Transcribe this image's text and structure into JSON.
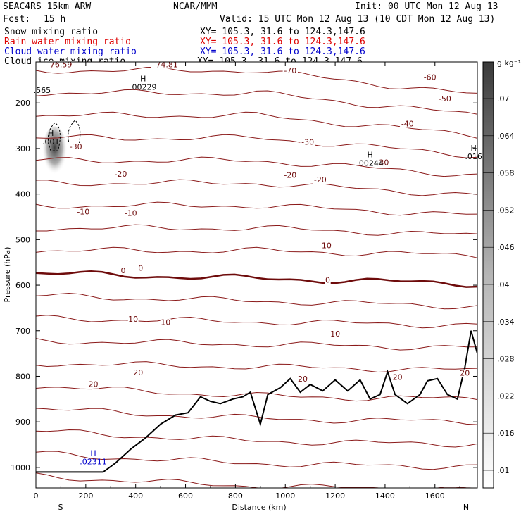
{
  "header": {
    "model": "SEAC4RS 15km ARW",
    "center": "NCAR/MMM",
    "init": "Init: 00 UTC Mon 12 Aug 13",
    "fcst_label": "Fcst:",
    "fcst_value": "15 h",
    "valid": "Valid: 15 UTC Mon 12 Aug 13 (10 CDT Mon 12 Aug 13)",
    "fields": [
      {
        "name": "Snow mixing ratio",
        "xy": "XY= 105.3, 31.6 to 124.3,147.6",
        "color": "#000000"
      },
      {
        "name": "Rain water mixing ratio",
        "xy": "XY= 105.3, 31.6 to 124.3,147.6",
        "color": "#dd0000"
      },
      {
        "name": "Cloud water mixing ratio",
        "xy": "XY= 105.3, 31.6 to 124.3,147.6",
        "color": "#0000cc"
      },
      {
        "name": "Cloud ice mixing ratio",
        "xy": "XY= 105.3, 31.6 to 124.3,147.6",
        "color": "#000000"
      }
    ]
  },
  "chart_data": {
    "type": "cross-section",
    "xlabel": "Distance (km)",
    "ylabel": "Pressure (hPa)",
    "x_ticks": [
      0,
      200,
      400,
      600,
      800,
      1000,
      1200,
      1400,
      1600
    ],
    "y_ticks": [
      200,
      300,
      400,
      500,
      600,
      700,
      800,
      900,
      1000
    ],
    "xlim": [
      0,
      1770
    ],
    "ylim": [
      1045,
      110
    ],
    "end_labels": {
      "left": "S",
      "right": "N"
    },
    "colorbar": {
      "unit": "g kg⁻¹",
      "ticks": [
        ".01",
        ".016",
        ".022",
        ".028",
        ".034",
        ".04",
        ".046",
        ".052",
        ".058",
        ".064",
        ".07"
      ],
      "min_color": "#ffffff",
      "max_color": "#3a3a3a"
    },
    "temperature_contours": {
      "color": "#8b1a1a",
      "levels": [
        -70,
        -60,
        -50,
        -40,
        -30,
        -20,
        -10,
        0,
        10,
        20
      ]
    },
    "contour_labels": [
      {
        "text": "-76.59",
        "x": 95,
        "p": 120
      },
      {
        "text": "-74.81",
        "x": 520,
        "p": 120
      },
      {
        "text": "-70",
        "x": 1020,
        "p": 133
      },
      {
        "text": "-60",
        "x": 1580,
        "p": 148
      },
      {
        "text": "-50",
        "x": 1640,
        "p": 195
      },
      {
        "text": "-40",
        "x": 1490,
        "p": 250
      },
      {
        "text": "-30",
        "x": 160,
        "p": 300
      },
      {
        "text": "-30",
        "x": 1090,
        "p": 290
      },
      {
        "text": "-30",
        "x": 1390,
        "p": 335
      },
      {
        "text": "-20",
        "x": 340,
        "p": 360
      },
      {
        "text": "-20",
        "x": 1020,
        "p": 363
      },
      {
        "text": "-20",
        "x": 1140,
        "p": 373
      },
      {
        "text": "-10",
        "x": 190,
        "p": 443
      },
      {
        "text": "-10",
        "x": 380,
        "p": 446
      },
      {
        "text": "-10",
        "x": 1160,
        "p": 517
      },
      {
        "text": "0",
        "x": 350,
        "p": 572
      },
      {
        "text": "0",
        "x": 420,
        "p": 567
      },
      {
        "text": "0",
        "x": 1170,
        "p": 593
      },
      {
        "text": "10",
        "x": 390,
        "p": 679
      },
      {
        "text": "10",
        "x": 520,
        "p": 686
      },
      {
        "text": "10",
        "x": 1200,
        "p": 711
      },
      {
        "text": "20",
        "x": 230,
        "p": 822
      },
      {
        "text": "20",
        "x": 410,
        "p": 796
      },
      {
        "text": "20",
        "x": 1070,
        "p": 810
      },
      {
        "text": "20",
        "x": 1450,
        "p": 806
      },
      {
        "text": "20",
        "x": 1720,
        "p": 797
      }
    ],
    "extrema_labels": [
      {
        "mark": "H",
        "value": ".00229",
        "x": 430,
        "p": 168,
        "color": "#000000"
      },
      {
        "mark": "H",
        "value": ".00244",
        "x": 1340,
        "p": 335,
        "color": "#000000"
      },
      {
        "mark": "H",
        "value": ".016",
        "x": 1755,
        "p": 320,
        "color": "#000000"
      },
      {
        "mark": "H",
        "value": ".001",
        "x": 60,
        "p": 288,
        "color": "#000000"
      },
      {
        "mark": "H",
        "value": ".02311",
        "x": 230,
        "p": 990,
        "color": "#0000cc"
      },
      {
        "mark": "",
        "value": ".565",
        "x": 25,
        "p": 175,
        "color": "#000000"
      }
    ]
  }
}
